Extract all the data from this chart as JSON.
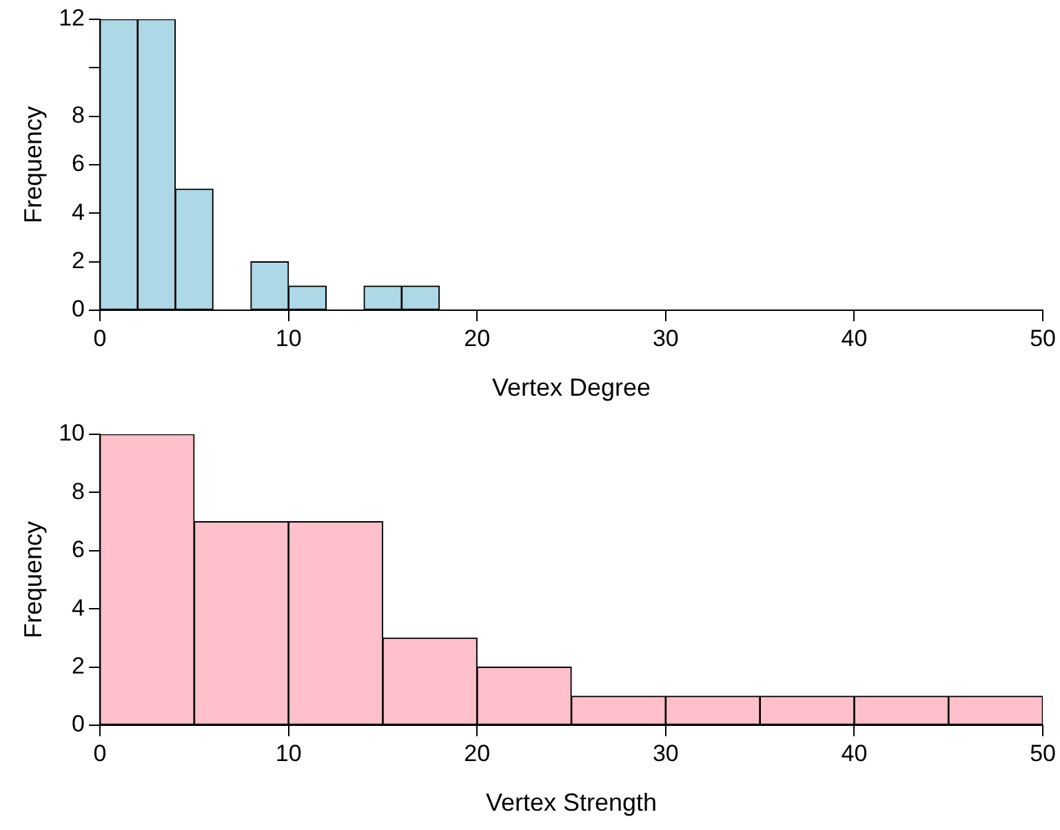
{
  "chart_data": [
    {
      "type": "histogram",
      "xlabel": "Vertex Degree",
      "ylabel": "Frequency",
      "bins": [
        0,
        2,
        4,
        6,
        8,
        10,
        12,
        14,
        16,
        18
      ],
      "values": [
        12,
        12,
        5,
        0,
        2,
        1,
        0,
        1,
        1
      ],
      "color": "#add8e6",
      "xlim": [
        0,
        50
      ],
      "xticks": [
        0,
        10,
        20,
        30,
        40,
        50
      ],
      "ylim": [
        0,
        12
      ],
      "yticks": [
        0,
        2,
        4,
        6,
        8,
        {
          "value": 10,
          "label": null
        },
        12
      ]
    },
    {
      "type": "histogram",
      "xlabel": "Vertex Strength",
      "ylabel": "Frequency",
      "bins": [
        0,
        5,
        10,
        15,
        20,
        25,
        30,
        35,
        40,
        45,
        50
      ],
      "values": [
        10,
        7,
        7,
        3,
        2,
        1,
        1,
        1,
        1,
        1
      ],
      "color": "#ffc0cb",
      "xlim": [
        0,
        50
      ],
      "xticks": [
        0,
        10,
        20,
        30,
        40,
        50
      ],
      "ylim": [
        0,
        10
      ],
      "yticks": [
        0,
        2,
        4,
        6,
        8,
        10
      ]
    }
  ]
}
